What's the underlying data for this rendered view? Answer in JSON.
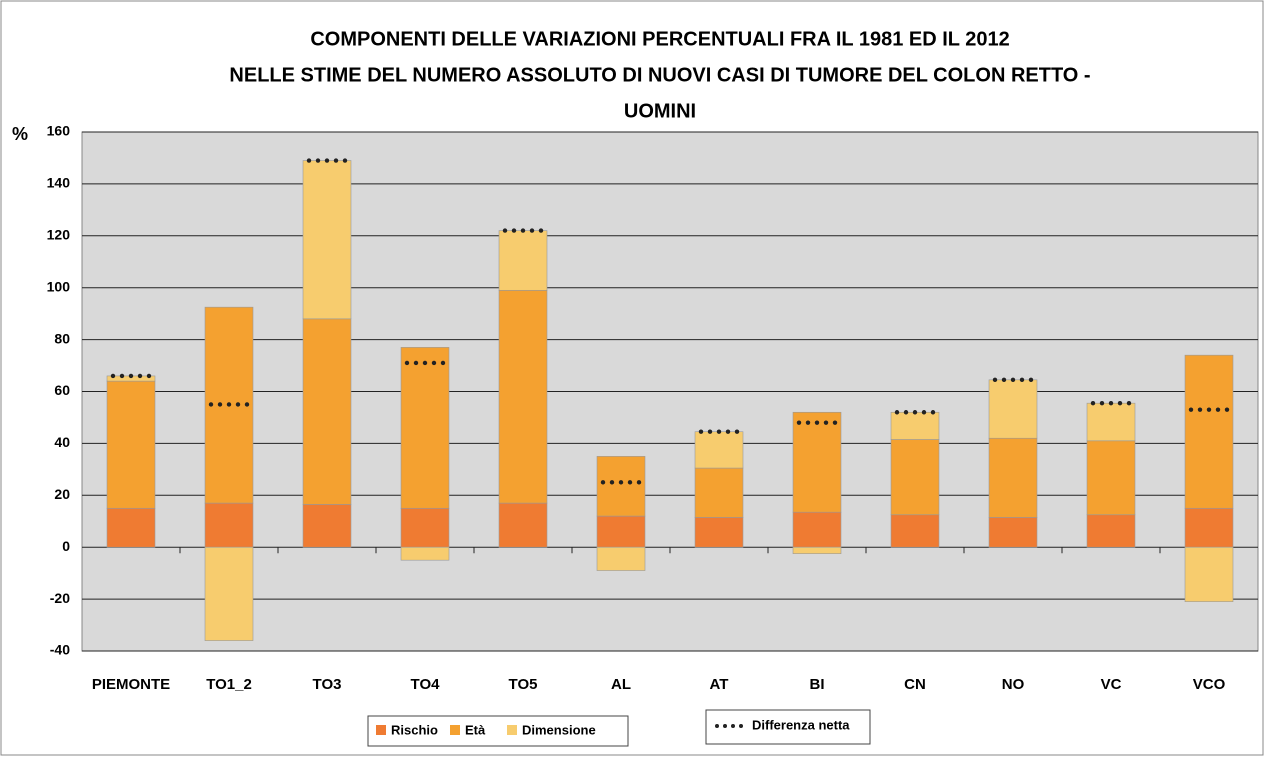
{
  "chart_data": {
    "type": "stacked_bar",
    "title": [
      "COMPONENTI DELLE VARIAZIONI PERCENTUALI FRA IL 1981 ED IL 2012",
      "NELLE STIME DEL NUMERO ASSOLUTO DI NUOVI CASI DI TUMORE DEL COLON RETTO -",
      "UOMINI"
    ],
    "y_label": "%",
    "categories": [
      "PIEMONTE",
      "TO1_2",
      "TO3",
      "TO4",
      "TO5",
      "AL",
      "AT",
      "BI",
      "CN",
      "NO",
      "VC",
      "VCO"
    ],
    "series": [
      {
        "name": "Rischio",
        "color": "#ef7b32",
        "values": [
          15,
          17,
          16.5,
          15,
          17,
          12,
          11.5,
          13.5,
          12.5,
          11.5,
          12.5,
          15
        ]
      },
      {
        "name": "Età",
        "color": "#f4a130",
        "values": [
          49,
          75.5,
          71.5,
          62,
          82,
          23,
          19,
          38.5,
          29,
          30.5,
          28.5,
          59
        ]
      },
      {
        "name": "Dimensione",
        "color": "#f7cc6e",
        "values": [
          2,
          -36,
          61,
          -5,
          23,
          -9,
          14,
          -2.5,
          10.5,
          22.5,
          14.5,
          -21
        ]
      }
    ],
    "net": {
      "name": "Differenza netta",
      "color": "#222222",
      "values": [
        66,
        55,
        149,
        71,
        122,
        25,
        44.5,
        48,
        52,
        64.5,
        55.5,
        53
      ]
    },
    "ylim": [
      -40,
      160
    ],
    "yticks": [
      -40,
      -20,
      0,
      20,
      40,
      60,
      80,
      100,
      120,
      140,
      160
    ],
    "grid": true
  }
}
